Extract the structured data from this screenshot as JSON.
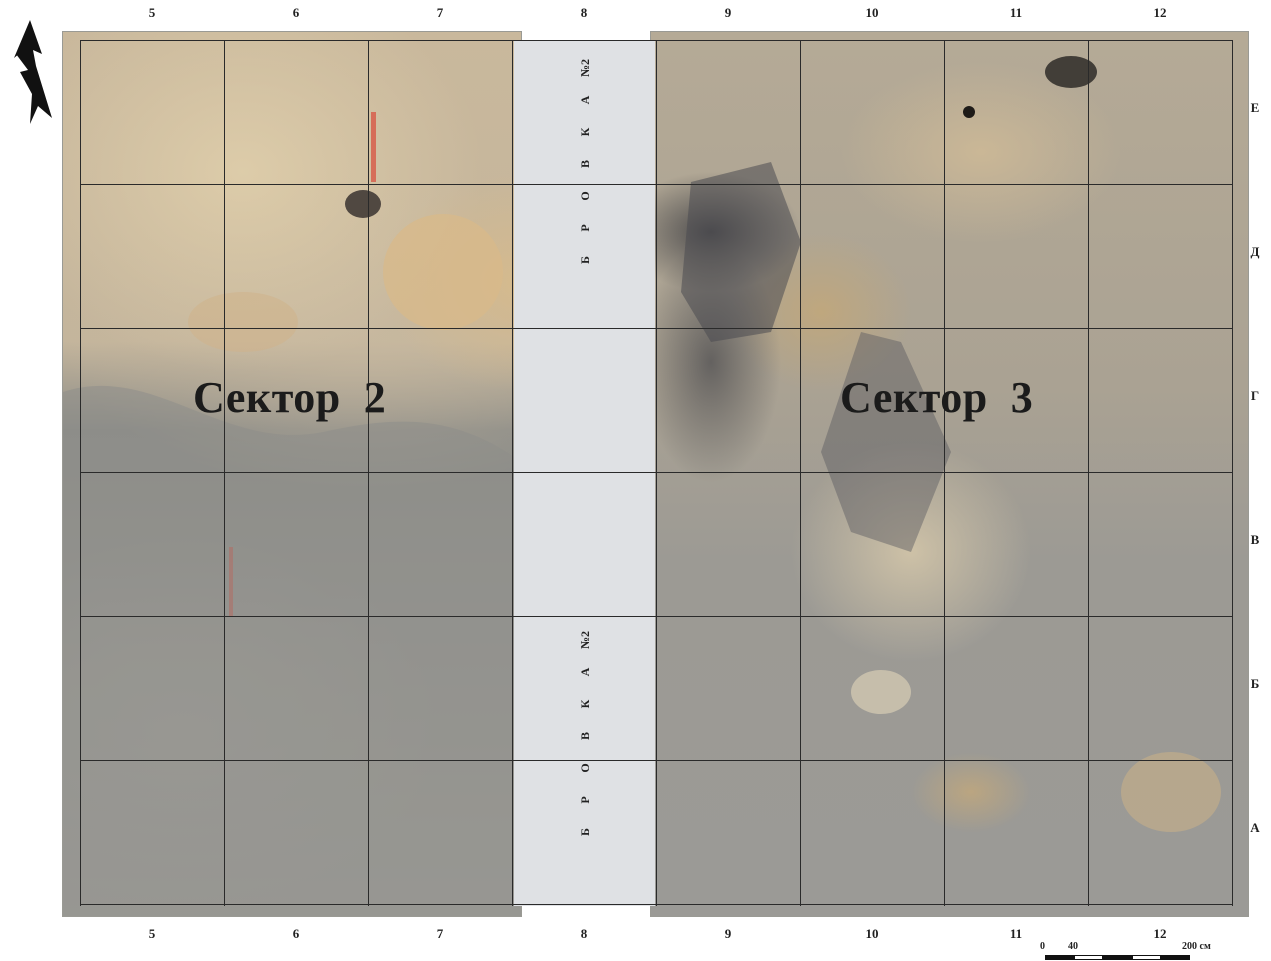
{
  "columns_top": [
    "5",
    "6",
    "7",
    "8",
    "9",
    "10",
    "11",
    "12"
  ],
  "columns_bottom": [
    "5",
    "6",
    "7",
    "8",
    "9",
    "10",
    "11",
    "12"
  ],
  "rows": [
    "Е",
    "Д",
    "Г",
    "В",
    "Б",
    "А"
  ],
  "sectors": {
    "left": "Сектор  2",
    "right": "Сектор  3"
  },
  "baulk": {
    "top_label": [
      "Б",
      "Р",
      "О",
      "В",
      "К",
      "А",
      "№2"
    ],
    "bottom_label": [
      "Б",
      "Р",
      "О",
      "В",
      "К",
      "А",
      "№2"
    ]
  },
  "scale": {
    "start": "0",
    "mid": "40",
    "end": "200 см"
  },
  "icons": {
    "north_arrow": "north-arrow-icon"
  },
  "colors": {
    "grid": "#2a2a2a",
    "baulk": "#dfe1e4",
    "text": "#1b1b1b"
  }
}
